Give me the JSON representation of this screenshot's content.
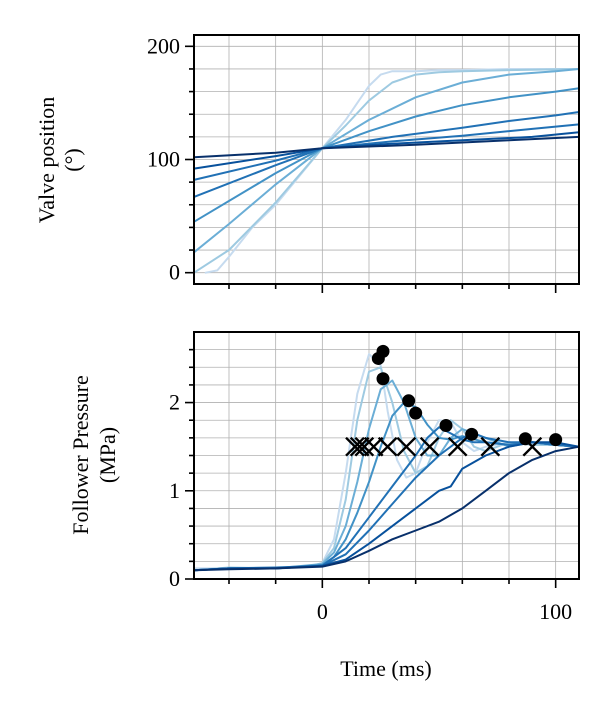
{
  "chart_data": [
    {
      "type": "line",
      "ylabel": [
        "Valve position",
        "(°)"
      ],
      "xlim": [
        -55,
        110
      ],
      "ylim": [
        -10,
        210
      ],
      "yticks": [
        0,
        100,
        200
      ],
      "ytick_labels": [
        "0",
        "100",
        "200"
      ],
      "yminor": [
        20,
        40,
        60,
        80,
        120,
        140,
        160,
        180
      ],
      "xticks": [
        0,
        100
      ],
      "xminor": [
        -40,
        -20,
        20,
        40,
        60,
        80
      ],
      "grid": true,
      "series": [
        {
          "name": "s1",
          "color": "#c6dbef",
          "x": [
            -50,
            -45,
            -40,
            -30,
            -20,
            -10,
            0,
            10,
            15,
            20,
            25,
            30,
            40,
            50,
            60,
            80,
            110
          ],
          "y": [
            0,
            2,
            14,
            40,
            60,
            85,
            110,
            135,
            150,
            165,
            175,
            178,
            178,
            179,
            179,
            180,
            180
          ]
        },
        {
          "name": "s2",
          "color": "#9ecae1",
          "x": [
            -55,
            -40,
            -20,
            0,
            10,
            20,
            30,
            40,
            50,
            60,
            80,
            110
          ],
          "y": [
            0,
            20,
            62,
            110,
            130,
            152,
            168,
            175,
            177,
            178,
            179,
            180
          ]
        },
        {
          "name": "s3",
          "color": "#6baed6",
          "x": [
            -55,
            -40,
            -20,
            0,
            20,
            40,
            60,
            80,
            100,
            110
          ],
          "y": [
            18,
            43,
            78,
            110,
            135,
            155,
            168,
            175,
            178,
            180
          ]
        },
        {
          "name": "s4",
          "color": "#4292c6",
          "x": [
            -55,
            -20,
            0,
            20,
            40,
            60,
            80,
            100,
            110
          ],
          "y": [
            45,
            88,
            110,
            125,
            138,
            148,
            155,
            160,
            163
          ]
        },
        {
          "name": "s5",
          "color": "#2171b5",
          "x": [
            -55,
            -20,
            0,
            30,
            60,
            80,
            100,
            110
          ],
          "y": [
            67,
            95,
            110,
            120,
            128,
            134,
            139,
            142
          ]
        },
        {
          "name": "s6",
          "color": "#2171b5",
          "x": [
            -55,
            -20,
            0,
            30,
            60,
            90,
            110
          ],
          "y": [
            82,
            99,
            110,
            116,
            121,
            127,
            131
          ]
        },
        {
          "name": "s7",
          "color": "#08519c",
          "x": [
            -55,
            -20,
            0,
            30,
            60,
            90,
            110
          ],
          "y": [
            92,
            103,
            110,
            114,
            117,
            120,
            124
          ]
        },
        {
          "name": "s8",
          "color": "#08306b",
          "x": [
            -55,
            -20,
            0,
            40,
            80,
            110
          ],
          "y": [
            102,
            106,
            110,
            113,
            117,
            120
          ]
        }
      ]
    },
    {
      "type": "line",
      "xlabel": "Time (ms)",
      "ylabel": [
        "Follower Pressure",
        "(MPa)"
      ],
      "xlim": [
        -55,
        110
      ],
      "ylim": [
        0,
        2.8
      ],
      "yticks": [
        0,
        1,
        2
      ],
      "ytick_labels": [
        "0",
        "1",
        "2"
      ],
      "yminor": [
        0.2,
        0.4,
        0.6,
        0.8,
        1.2,
        1.4,
        1.6,
        1.8,
        2.2,
        2.4,
        2.6
      ],
      "xticks": [
        0,
        100
      ],
      "xtick_labels": [
        "0",
        "100"
      ],
      "xminor": [
        -40,
        -20,
        20,
        40,
        60,
        80
      ],
      "grid": true,
      "series": [
        {
          "name": "s1",
          "color": "#c6dbef",
          "x": [
            -55,
            -40,
            -20,
            -5,
            0,
            5,
            10,
            15,
            20,
            25,
            28,
            32,
            36,
            40,
            45,
            50,
            55,
            60,
            65,
            70,
            80,
            90,
            100,
            110
          ],
          "y": [
            0.12,
            0.12,
            0.13,
            0.14,
            0.18,
            0.45,
            1.2,
            2.1,
            2.55,
            2.42,
            1.9,
            1.35,
            1.15,
            1.2,
            1.55,
            1.8,
            1.78,
            1.55,
            1.45,
            1.5,
            1.55,
            1.52,
            1.52,
            1.5
          ]
        },
        {
          "name": "s2",
          "color": "#9ecae1",
          "x": [
            -55,
            -40,
            -20,
            -5,
            0,
            5,
            10,
            15,
            20,
            25,
            30,
            35,
            40,
            45,
            50,
            55,
            60,
            65,
            70,
            80,
            90,
            100,
            110
          ],
          "y": [
            0.1,
            0.13,
            0.12,
            0.15,
            0.18,
            0.35,
            0.9,
            1.8,
            2.35,
            2.4,
            2.0,
            1.45,
            1.2,
            1.28,
            1.6,
            1.8,
            1.7,
            1.5,
            1.45,
            1.55,
            1.52,
            1.52,
            1.5
          ]
        },
        {
          "name": "s3",
          "color": "#6baed6",
          "x": [
            -55,
            -40,
            -20,
            0,
            5,
            10,
            15,
            20,
            25,
            30,
            35,
            40,
            45,
            50,
            55,
            60,
            70,
            80,
            90,
            100,
            110
          ],
          "y": [
            0.1,
            0.12,
            0.12,
            0.17,
            0.3,
            0.6,
            1.1,
            1.7,
            2.15,
            2.25,
            2.0,
            1.6,
            1.4,
            1.4,
            1.6,
            1.7,
            1.6,
            1.5,
            1.55,
            1.52,
            1.5
          ]
        },
        {
          "name": "s4",
          "color": "#4292c6",
          "x": [
            -55,
            -40,
            -20,
            0,
            5,
            10,
            15,
            20,
            25,
            30,
            35,
            40,
            45,
            50,
            55,
            60,
            70,
            80,
            90,
            100,
            110
          ],
          "y": [
            0.1,
            0.12,
            0.12,
            0.16,
            0.25,
            0.45,
            0.75,
            1.1,
            1.5,
            1.85,
            2.0,
            1.95,
            1.75,
            1.6,
            1.58,
            1.62,
            1.55,
            1.52,
            1.55,
            1.52,
            1.5
          ]
        },
        {
          "name": "s5",
          "color": "#2171b5",
          "x": [
            -55,
            -40,
            -20,
            0,
            10,
            20,
            30,
            40,
            45,
            50,
            55,
            60,
            65,
            70,
            80,
            90,
            100,
            110
          ],
          "y": [
            0.1,
            0.12,
            0.13,
            0.15,
            0.35,
            0.7,
            1.05,
            1.4,
            1.6,
            1.72,
            1.65,
            1.58,
            1.55,
            1.55,
            1.52,
            1.55,
            1.52,
            1.5
          ]
        },
        {
          "name": "s6",
          "color": "#2171b5",
          "x": [
            -55,
            -40,
            -20,
            0,
            10,
            20,
            30,
            40,
            50,
            60,
            65,
            70,
            80,
            90,
            100,
            110
          ],
          "y": [
            0.1,
            0.12,
            0.12,
            0.15,
            0.28,
            0.55,
            0.85,
            1.15,
            1.4,
            1.6,
            1.65,
            1.6,
            1.55,
            1.55,
            1.52,
            1.5
          ]
        },
        {
          "name": "s7",
          "color": "#08519c",
          "x": [
            -55,
            -40,
            -20,
            0,
            10,
            20,
            30,
            40,
            50,
            55,
            60,
            70,
            80,
            90,
            100,
            110
          ],
          "y": [
            0.1,
            0.12,
            0.12,
            0.15,
            0.22,
            0.4,
            0.6,
            0.8,
            1.0,
            1.05,
            1.25,
            1.4,
            1.5,
            1.55,
            1.55,
            1.5
          ]
        },
        {
          "name": "s8",
          "color": "#08306b",
          "x": [
            -55,
            -40,
            -20,
            0,
            10,
            20,
            30,
            40,
            50,
            60,
            70,
            80,
            90,
            100,
            110
          ],
          "y": [
            0.1,
            0.11,
            0.12,
            0.14,
            0.2,
            0.32,
            0.45,
            0.55,
            0.65,
            0.8,
            1.0,
            1.2,
            1.35,
            1.45,
            1.5
          ]
        }
      ],
      "peaks": {
        "x": [
          24,
          26,
          26,
          37,
          40,
          53,
          64,
          87,
          100
        ],
        "y": [
          2.5,
          2.58,
          2.27,
          2.02,
          1.88,
          1.74,
          1.64,
          1.59,
          1.58
        ]
      },
      "crossings": {
        "x": [
          14,
          16,
          18,
          22,
          28,
          36,
          46,
          58,
          72,
          90
        ],
        "y": [
          1.5,
          1.5,
          1.5,
          1.5,
          1.5,
          1.5,
          1.5,
          1.5,
          1.5,
          1.5
        ]
      }
    }
  ]
}
